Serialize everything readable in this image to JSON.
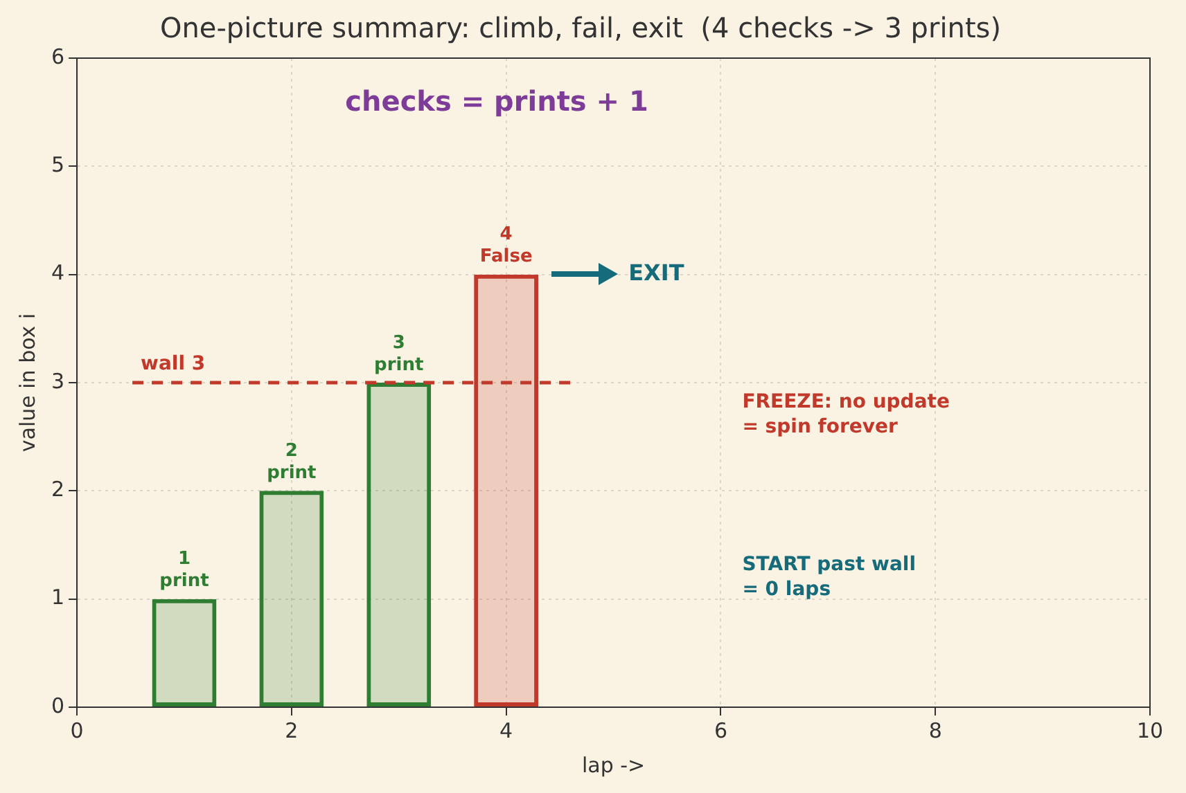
{
  "chart_data": {
    "type": "bar",
    "title": "One-picture summary: climb, fail, exit  (4 checks -> 3 prints)",
    "xlabel": "lap ->",
    "ylabel": "value in box i",
    "x": [
      1,
      2,
      3,
      4
    ],
    "values": [
      1,
      2,
      3,
      4
    ],
    "colors": [
      "#2e7d32",
      "#2e7d32",
      "#2e7d32",
      "#c0392b"
    ],
    "value_labels": [
      "1\nprint",
      "2\nprint",
      "3\nprint",
      "4\nFalse"
    ],
    "xlim": [
      0,
      10
    ],
    "xticks": [
      0,
      2,
      4,
      6,
      8,
      10
    ],
    "ylim": [
      0,
      6
    ],
    "yticks": [
      0,
      1,
      2,
      3,
      4,
      5,
      6
    ],
    "grid": true,
    "legend": false,
    "ref_lines": [
      {
        "axis": "y",
        "value": 3,
        "label": "wall 3",
        "color": "#c0392b",
        "line_style": "dashed"
      }
    ],
    "annotations": [
      "checks = prints + 1",
      "EXIT",
      "FREEZE: no update\n= spin forever",
      "START past wall\n= 0 laps"
    ]
  }
}
